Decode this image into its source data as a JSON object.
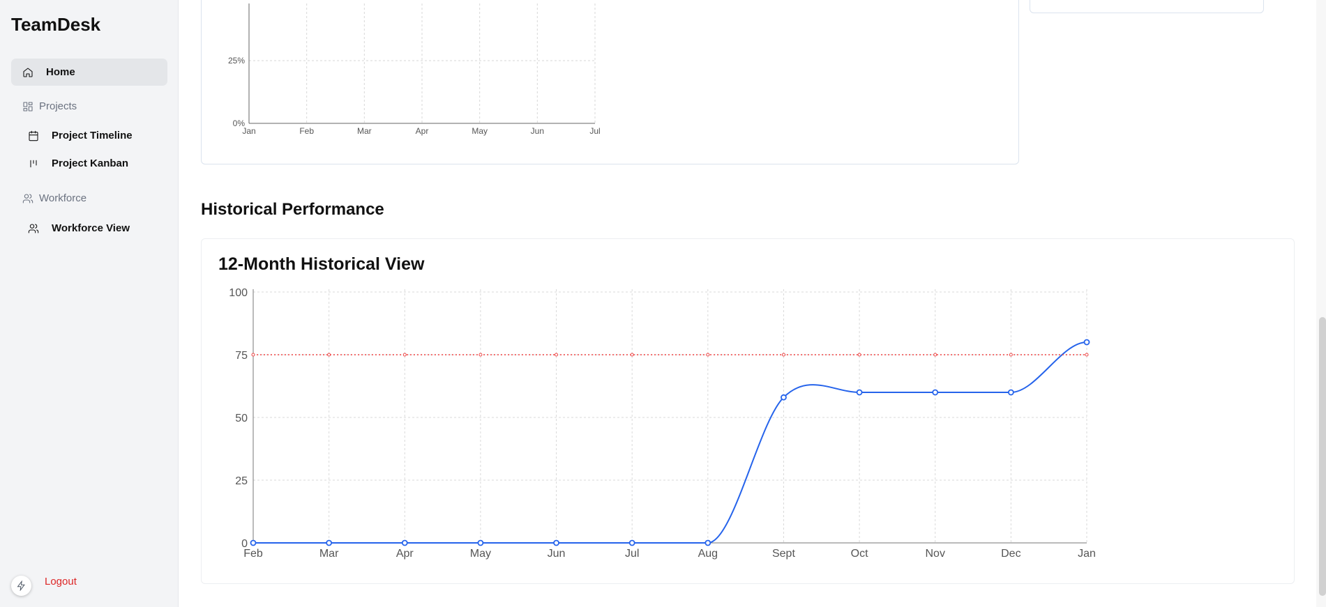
{
  "sidebar": {
    "brand": "TeamDesk",
    "home": "Home",
    "projects_section": "Projects",
    "project_timeline": "Project Timeline",
    "project_kanban": "Project Kanban",
    "workforce_section": "Workforce",
    "workforce_view": "Workforce View",
    "logout": "Logout"
  },
  "main": {
    "section_title": "Historical Performance",
    "hist_card_title": "12-Month Historical View"
  },
  "chart_data": [
    {
      "type": "line",
      "x": [
        "Jan",
        "Feb",
        "Mar",
        "Apr",
        "May",
        "Jun",
        "Jul"
      ],
      "yticks": [
        "0%",
        "25%"
      ],
      "series": [],
      "grid": true,
      "note_visible": "partial chart, upper part scrolled out of view"
    },
    {
      "type": "line",
      "title": "12-Month Historical View",
      "x": [
        "Feb",
        "Mar",
        "Apr",
        "May",
        "Jun",
        "Jul",
        "Aug",
        "Sept",
        "Oct",
        "Nov",
        "Dec",
        "Jan"
      ],
      "ylim": [
        0,
        100
      ],
      "yticks": [
        "0",
        "25",
        "50",
        "75",
        "100"
      ],
      "grid": true,
      "series": [
        {
          "values": [
            0,
            0,
            0,
            0,
            0,
            0,
            0,
            58,
            60,
            60,
            60,
            80
          ],
          "color": "#2563eb",
          "style": "solid"
        },
        {
          "values": [
            75,
            75,
            75,
            75,
            75,
            75,
            75,
            75,
            75,
            75,
            75,
            75
          ],
          "color": "#ef4444",
          "style": "dotted"
        }
      ]
    }
  ]
}
